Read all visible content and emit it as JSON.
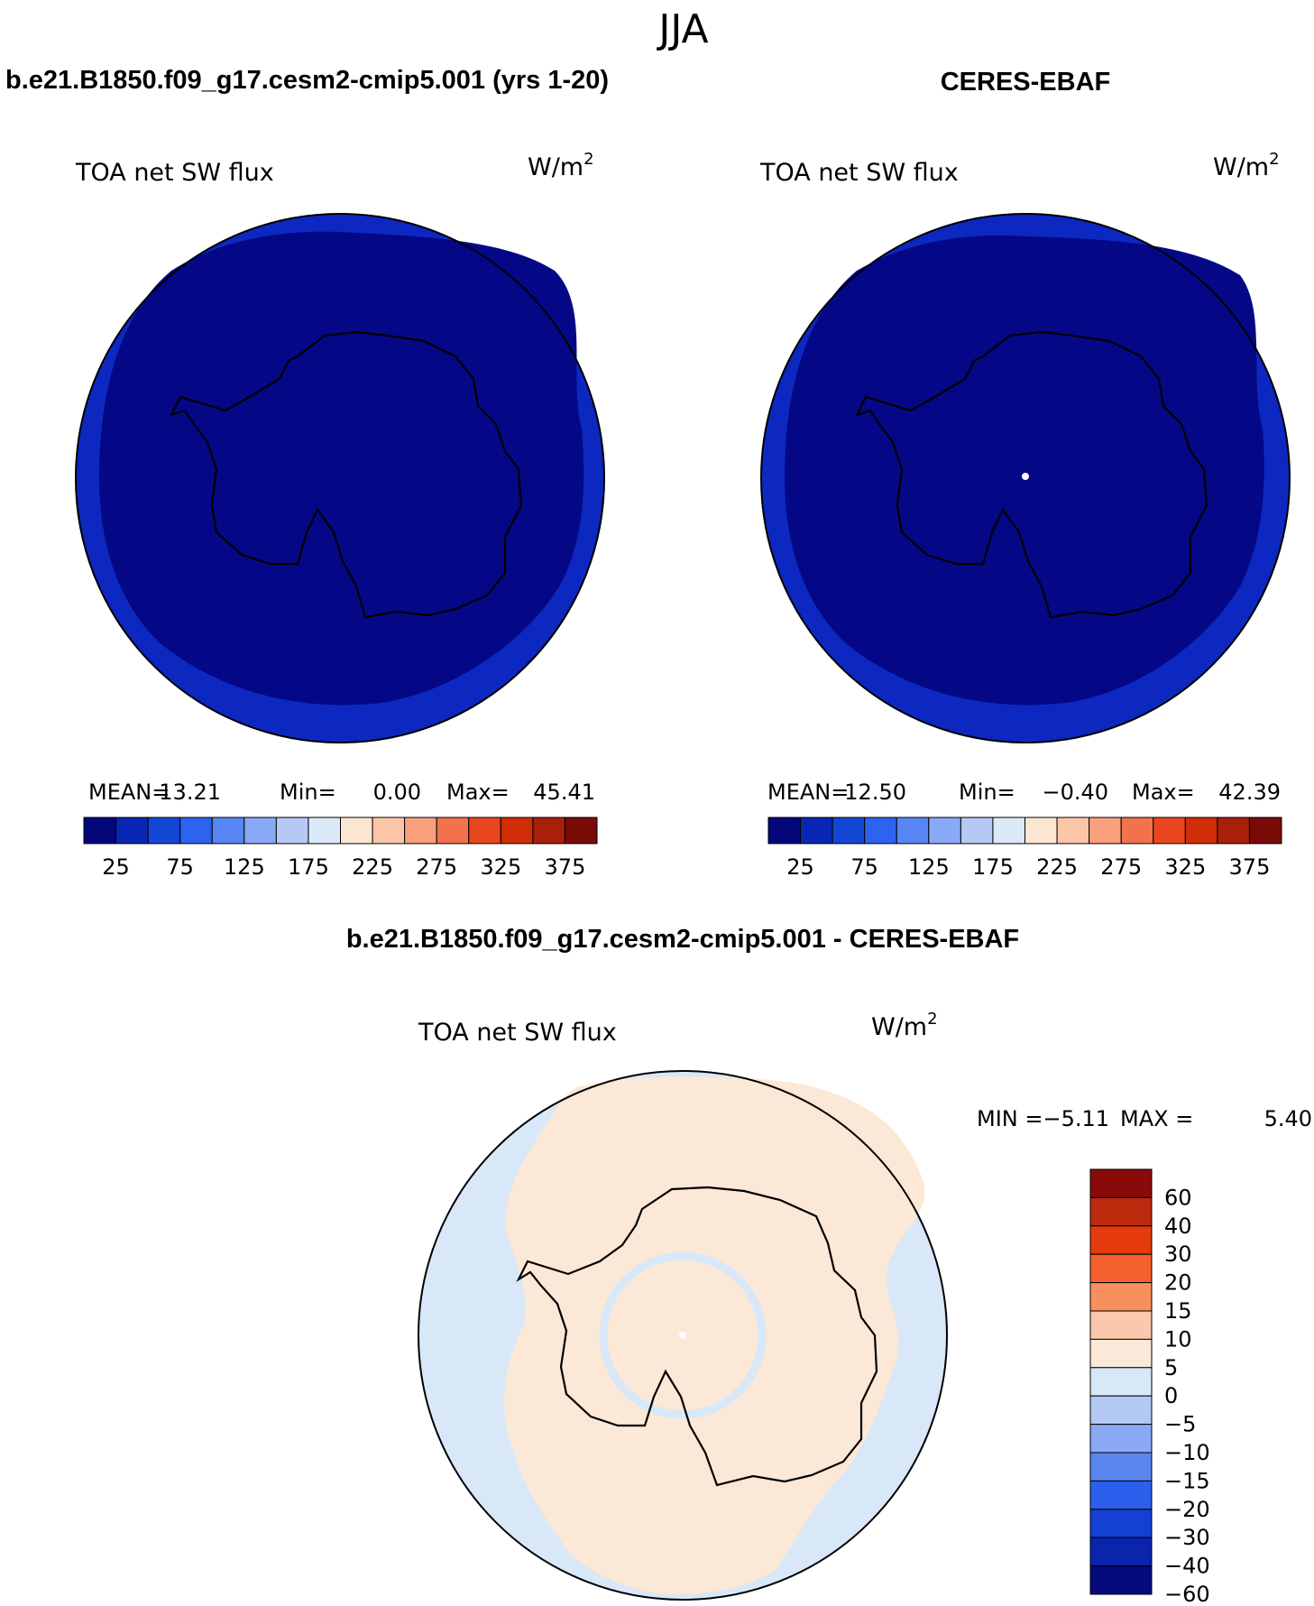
{
  "season": "JJA",
  "panel_left": {
    "case_title": "b.e21.B1850.f09_g17.cesm2-cmip5.001 (yrs 1-20)",
    "variable": "TOA net SW flux",
    "units_base": "W/m",
    "units_exp": "2",
    "stats": {
      "mean_label": "MEAN=",
      "mean": "13.21",
      "min_label": "Min=",
      "min": "0.00",
      "max_label": "Max=",
      "max": "45.41"
    }
  },
  "panel_right": {
    "case_title": "CERES-EBAF",
    "variable": "TOA net SW flux",
    "units_base": "W/m",
    "units_exp": "2",
    "stats": {
      "mean_label": "MEAN=",
      "mean": "12.50",
      "min_label": "Min=",
      "min": "−0.40",
      "max_label": "Max=",
      "max": "42.39"
    }
  },
  "panel_diff": {
    "case_title": "b.e21.B1850.f09_g17.cesm2-cmip5.001 - CERES-EBAF",
    "variable": "TOA net SW flux",
    "units_base": "W/m",
    "units_exp": "2",
    "stats": {
      "min_label": "MIN =",
      "min": "−5.11",
      "max_label": "MAX =",
      "max": "5.40"
    }
  },
  "colorbar_main": {
    "colors": [
      "#04077a",
      "#0a26b4",
      "#1446d6",
      "#2c63f0",
      "#5786f4",
      "#8aa9f4",
      "#b6c9f4",
      "#dce9f8",
      "#fbe6d2",
      "#fbc6a8",
      "#f8a07c",
      "#f3724e",
      "#e8461e",
      "#cf2c08",
      "#a8200a",
      "#7a0a08"
    ],
    "labels": [
      "25",
      "75",
      "125",
      "175",
      "225",
      "275",
      "325",
      "375"
    ]
  },
  "colorbar_diff": {
    "colors": [
      "#8a0a0a",
      "#bc2a0e",
      "#e43a0c",
      "#f4602c",
      "#f8905e",
      "#fac8ac",
      "#fbe8d8",
      "#d8e8f8",
      "#b4c8f4",
      "#8aa8f4",
      "#5a86f0",
      "#2c60ec",
      "#1440d4",
      "#0a24ac",
      "#040a7c"
    ],
    "labels": [
      "60",
      "40",
      "30",
      "20",
      "15",
      "10",
      "5",
      "0",
      "−5",
      "−10",
      "−15",
      "−20",
      "−30",
      "−40",
      "−60"
    ]
  },
  "map_colors": {
    "deep_blue": "#040886",
    "ring_blue": "#0c28c0",
    "peach": "#fce8d6",
    "light_blue": "#d8e8f8"
  }
}
